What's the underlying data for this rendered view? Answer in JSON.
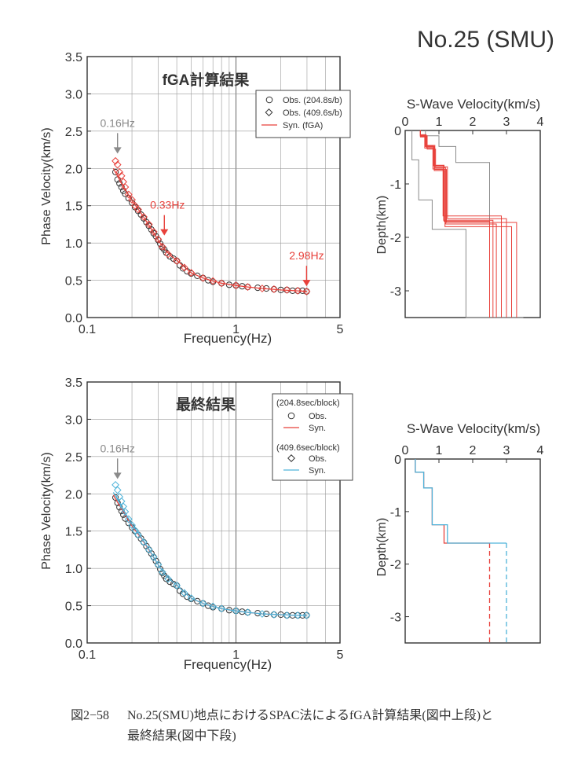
{
  "page_title": "No.25 (SMU)",
  "caption": {
    "figure_number": "図2−58",
    "line1": "No.25(SMU)地点におけるSPAC法によるfGA計算結果(図中上段)と",
    "line2": "最終結果(図中下段)"
  },
  "colors": {
    "red": "#e8413b",
    "cyan": "#4fb3d9",
    "gray": "#8a8a8a",
    "obs_edge": "#333333"
  },
  "chart_data": [
    {
      "type": "scatter",
      "id": "dispersion-fga",
      "title": "fGA計算結果",
      "xlabel": "Frequency(Hz)",
      "ylabel": "Phase Velocity(km/s)",
      "xscale": "log",
      "xlim": [
        0.1,
        5
      ],
      "ylim": [
        0.0,
        3.5
      ],
      "xticks": [
        "0.1",
        "1",
        "5"
      ],
      "yticks": [
        "0.0",
        "0.5",
        "1.0",
        "1.5",
        "2.0",
        "2.5",
        "3.0",
        "3.5"
      ],
      "grid": true,
      "legend_position": "top-right",
      "legend": [
        "Obs. (204.8s/b)",
        "Obs. (409.6s/b)",
        "Syn. (fGA)"
      ],
      "annotations": [
        {
          "text": "0.16Hz",
          "x": 0.16,
          "y": 2.2,
          "color": "gray"
        },
        {
          "text": "0.33Hz",
          "x": 0.33,
          "y": 1.1,
          "color": "red"
        },
        {
          "text": "2.98Hz",
          "x": 2.98,
          "y": 0.42,
          "color": "red"
        }
      ],
      "series": [
        {
          "name": "Obs. (204.8s/b)",
          "marker": "circle",
          "x": [
            0.155,
            0.16,
            0.165,
            0.17,
            0.175,
            0.18,
            0.19,
            0.2,
            0.21,
            0.22,
            0.23,
            0.24,
            0.25,
            0.26,
            0.27,
            0.28,
            0.29,
            0.3,
            0.31,
            0.32,
            0.33,
            0.34,
            0.36,
            0.38,
            0.4,
            0.42,
            0.44,
            0.47,
            0.5,
            0.55,
            0.6,
            0.65,
            0.7,
            0.8,
            0.9,
            1.0,
            1.1,
            1.2,
            1.4,
            1.6,
            1.8,
            2.0,
            2.2,
            2.4,
            2.6,
            2.8,
            2.98
          ],
          "y": [
            1.95,
            1.85,
            1.8,
            1.75,
            1.7,
            1.66,
            1.6,
            1.54,
            1.48,
            1.43,
            1.38,
            1.33,
            1.28,
            1.23,
            1.18,
            1.13,
            1.09,
            1.04,
            0.99,
            0.94,
            0.91,
            0.87,
            0.82,
            0.79,
            0.76,
            0.7,
            0.66,
            0.62,
            0.59,
            0.56,
            0.53,
            0.5,
            0.48,
            0.46,
            0.44,
            0.43,
            0.42,
            0.41,
            0.4,
            0.39,
            0.38,
            0.37,
            0.37,
            0.36,
            0.36,
            0.36,
            0.35
          ]
        },
        {
          "name": "Obs. (409.6s/b)",
          "marker": "diamond",
          "x": [
            0.155,
            0.16,
            0.165,
            0.17,
            0.175,
            0.18,
            0.19,
            0.2,
            0.21,
            0.22,
            0.24,
            0.26,
            0.28,
            0.3,
            0.32,
            0.35,
            0.4,
            0.45,
            0.5,
            0.6,
            0.7,
            0.8,
            1.0,
            1.2,
            1.5,
            1.8,
            2.2,
            2.6,
            2.98
          ],
          "y": [
            2.1,
            2.05,
            1.95,
            1.9,
            1.82,
            1.75,
            1.65,
            1.58,
            1.5,
            1.45,
            1.35,
            1.25,
            1.15,
            1.05,
            0.95,
            0.85,
            0.76,
            0.67,
            0.6,
            0.53,
            0.49,
            0.46,
            0.43,
            0.41,
            0.39,
            0.38,
            0.37,
            0.36,
            0.35
          ]
        },
        {
          "name": "Syn. (fGA)",
          "line": true,
          "x": [
            0.15,
            0.17,
            0.2,
            0.23,
            0.26,
            0.3,
            0.33,
            0.36,
            0.4,
            0.45,
            0.5,
            0.6,
            0.7,
            0.8,
            1.0,
            1.2,
            1.5,
            2.0,
            2.5,
            3.0
          ],
          "y": [
            2.0,
            1.8,
            1.57,
            1.4,
            1.24,
            1.04,
            0.92,
            0.84,
            0.77,
            0.68,
            0.6,
            0.53,
            0.49,
            0.46,
            0.43,
            0.41,
            0.39,
            0.37,
            0.36,
            0.35
          ]
        }
      ]
    },
    {
      "type": "line",
      "id": "profile-fga",
      "title": "S-Wave Velocity(km/s)",
      "ylabel": "Depth(km)",
      "xlim": [
        0,
        4
      ],
      "ylim": [
        0,
        -3.5
      ],
      "xticks": [
        "0",
        "1",
        "2",
        "3",
        "4"
      ],
      "yticks": [
        "0",
        "-1",
        "-2",
        "-3"
      ],
      "gray_bounds": [
        {
          "vs": [
            0.2,
            0.4,
            0.8,
            1.8,
            3.5
          ],
          "depth": [
            0,
            -0.55,
            -1.3,
            -1.85,
            -3.5
          ]
        },
        {
          "vs": [
            0.6,
            1.0,
            1.5,
            2.5,
            3.3
          ],
          "depth": [
            0,
            -0.1,
            -0.3,
            -0.6,
            -3.5
          ]
        }
      ],
      "red_profiles": [
        {
          "vs": [
            0.45,
            0.6,
            0.85,
            1.15,
            2.5
          ],
          "depth": [
            0,
            -0.1,
            -0.3,
            -0.65,
            -1.7
          ]
        },
        {
          "vs": [
            0.45,
            0.62,
            0.88,
            1.2,
            2.7
          ],
          "depth": [
            0,
            -0.08,
            -0.28,
            -0.7,
            -1.75
          ]
        },
        {
          "vs": [
            0.45,
            0.58,
            0.82,
            1.12,
            2.85
          ],
          "depth": [
            0,
            -0.12,
            -0.33,
            -0.72,
            -1.6
          ]
        },
        {
          "vs": [
            0.45,
            0.65,
            0.9,
            1.25,
            3.0
          ],
          "depth": [
            0,
            -0.1,
            -0.35,
            -0.68,
            -1.65
          ]
        },
        {
          "vs": [
            0.45,
            0.6,
            0.86,
            1.18,
            3.15
          ],
          "depth": [
            0,
            -0.09,
            -0.3,
            -0.75,
            -1.8
          ]
        },
        {
          "vs": [
            0.45,
            0.63,
            0.87,
            1.22,
            3.3
          ],
          "depth": [
            0,
            -0.11,
            -0.32,
            -0.73,
            -1.72
          ]
        },
        {
          "vs": [
            0.45,
            0.59,
            0.84,
            1.14,
            2.6
          ],
          "depth": [
            0,
            -0.1,
            -0.29,
            -0.66,
            -1.68
          ]
        }
      ]
    },
    {
      "type": "scatter",
      "id": "dispersion-final",
      "title": "最終結果",
      "xlabel": "Frequency(Hz)",
      "ylabel": "Phase Velocity(km/s)",
      "xscale": "log",
      "xlim": [
        0.1,
        5
      ],
      "ylim": [
        0.0,
        3.5
      ],
      "xticks": [
        "0.1",
        "1",
        "5"
      ],
      "yticks": [
        "0.0",
        "0.5",
        "1.0",
        "1.5",
        "2.0",
        "2.5",
        "3.0",
        "3.5"
      ],
      "grid": true,
      "legend_position": "top-right",
      "legend_groups": [
        {
          "header": "(204.8sec/block)",
          "items": [
            "Obs.",
            "Syn."
          ]
        },
        {
          "header": "(409.6sec/block)",
          "items": [
            "Obs.",
            "Syn."
          ]
        }
      ],
      "annotations": [
        {
          "text": "0.16Hz",
          "x": 0.16,
          "y": 2.2,
          "color": "gray"
        }
      ],
      "series": [
        {
          "name": "Obs.",
          "marker": "circle",
          "x": [
            0.155,
            0.16,
            0.165,
            0.17,
            0.175,
            0.18,
            0.19,
            0.2,
            0.21,
            0.22,
            0.23,
            0.24,
            0.25,
            0.26,
            0.27,
            0.28,
            0.29,
            0.3,
            0.31,
            0.32,
            0.33,
            0.34,
            0.36,
            0.38,
            0.4,
            0.42,
            0.44,
            0.47,
            0.5,
            0.55,
            0.6,
            0.65,
            0.7,
            0.8,
            0.9,
            1.0,
            1.1,
            1.2,
            1.4,
            1.6,
            1.8,
            2.0,
            2.2,
            2.4,
            2.6,
            2.8,
            2.98
          ],
          "y": [
            1.95,
            1.88,
            1.82,
            1.77,
            1.72,
            1.67,
            1.61,
            1.55,
            1.5,
            1.45,
            1.4,
            1.35,
            1.3,
            1.25,
            1.2,
            1.15,
            1.1,
            1.05,
            0.99,
            0.94,
            0.9,
            0.86,
            0.82,
            0.79,
            0.77,
            0.7,
            0.66,
            0.62,
            0.59,
            0.56,
            0.53,
            0.5,
            0.48,
            0.46,
            0.44,
            0.43,
            0.42,
            0.41,
            0.4,
            0.39,
            0.38,
            0.38,
            0.37,
            0.37,
            0.37,
            0.37,
            0.37
          ]
        },
        {
          "name": "Syn.",
          "line": true,
          "x": [
            0.15,
            0.17,
            0.2,
            0.23,
            0.26,
            0.3,
            0.33,
            0.36,
            0.4,
            0.45,
            0.5,
            0.6,
            0.7,
            0.8,
            1.0,
            1.2,
            1.5,
            2.0,
            2.5,
            3.0
          ],
          "y": [
            1.98,
            1.8,
            1.57,
            1.41,
            1.25,
            1.05,
            0.93,
            0.85,
            0.78,
            0.68,
            0.6,
            0.53,
            0.49,
            0.46,
            0.43,
            0.41,
            0.39,
            0.38,
            0.37,
            0.37
          ]
        },
        {
          "name": "Obs.",
          "marker": "diamond",
          "x": [
            0.155,
            0.16,
            0.165,
            0.17,
            0.175,
            0.18,
            0.19,
            0.2,
            0.21,
            0.22,
            0.24,
            0.26,
            0.28,
            0.3,
            0.32,
            0.35,
            0.4,
            0.45,
            0.5,
            0.6,
            0.7,
            0.8,
            1.0,
            1.2,
            1.5,
            1.8,
            2.2,
            2.6,
            2.98
          ],
          "y": [
            2.12,
            2.05,
            1.96,
            1.9,
            1.83,
            1.76,
            1.66,
            1.58,
            1.51,
            1.45,
            1.35,
            1.25,
            1.15,
            1.05,
            0.95,
            0.86,
            0.77,
            0.67,
            0.6,
            0.53,
            0.49,
            0.46,
            0.43,
            0.41,
            0.39,
            0.38,
            0.37,
            0.37,
            0.37
          ]
        },
        {
          "name": "Syn.",
          "line": true,
          "x": [
            0.15,
            0.17,
            0.2,
            0.23,
            0.26,
            0.3,
            0.33,
            0.36,
            0.4,
            0.45,
            0.5,
            0.6,
            0.7,
            0.8,
            1.0,
            1.2,
            1.5,
            2.0,
            2.5,
            3.0
          ],
          "y": [
            2.02,
            1.83,
            1.59,
            1.42,
            1.26,
            1.05,
            0.93,
            0.85,
            0.78,
            0.68,
            0.6,
            0.53,
            0.49,
            0.46,
            0.43,
            0.41,
            0.39,
            0.38,
            0.37,
            0.37
          ]
        }
      ]
    },
    {
      "type": "line",
      "id": "profile-final",
      "title": "S-Wave Velocity(km/s)",
      "ylabel": "Depth(km)",
      "xlim": [
        0,
        4
      ],
      "ylim": [
        0,
        -3.5
      ],
      "xticks": [
        "0",
        "1",
        "2",
        "3",
        "4"
      ],
      "yticks": [
        "0",
        "-1",
        "-2",
        "-3"
      ],
      "profiles": [
        {
          "name": "204.8sec/block",
          "vs": [
            0.3,
            0.55,
            0.8,
            1.15,
            2.5
          ],
          "depth": [
            0,
            -0.25,
            -0.55,
            -1.25,
            -1.6
          ],
          "bottom_dashed": true
        },
        {
          "name": "409.6sec/block",
          "vs": [
            0.3,
            0.55,
            0.8,
            1.25,
            3.0
          ],
          "depth": [
            0,
            -0.25,
            -0.55,
            -1.25,
            -1.6
          ],
          "bottom_dashed": true
        }
      ]
    }
  ]
}
